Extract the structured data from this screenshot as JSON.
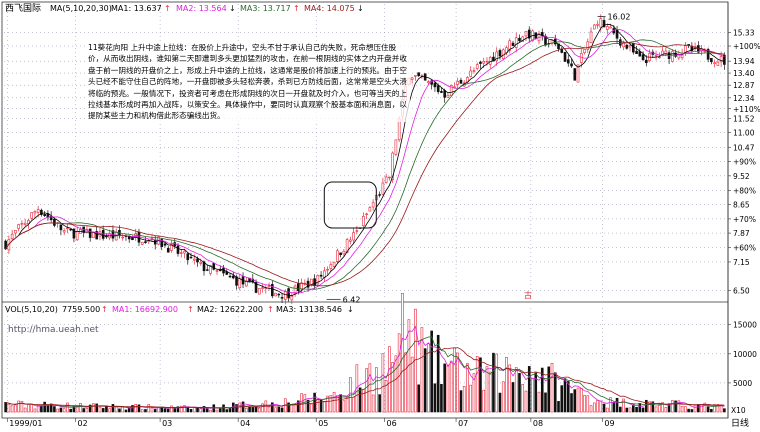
{
  "header": {
    "stock_name": "西飞国际",
    "ma_prefix": "MA(5,10,20,30)",
    "ma1": "MA1: 13.637",
    "ma2": "MA2: 13.564",
    "ma3": "MA3: 13.717",
    "ma4": "MA4: 14.075",
    "arrow_up": "↑",
    "arrow_down": "↓"
  },
  "annotation": {
    "text": "11葵花向阳  上升中途上拉线：在股价上升途中，空头不甘于承认自己的失败，死命想压住股价，从而收出阴线，谁知第二天即遭到多头更加猛烈的攻击，在前一根阴线的实体之内开盘并收盘于前一阴线的开盘价之上，形成上升中途的上拉线，这通常是股价将加速上行的预兆。由于空头已经不能守住自己的阵地，一开盘即被多头轻松奔袭，杀到已方防线后面，这常常是空头大溃将临的预兆。一般情况下，投资者可考虑在形成阴线的次日一开盘就及时介入，也可等当天的上拉线基本形成时再加入战阵，以策安全。具体操作中，要同时认真观察个股基本面和消息面，以提防某些主力和机构借此形态骗线出货。"
  },
  "volume_header": {
    "prefix": "VOL(5,10,20)",
    "vol": "7759.500",
    "ma1": "MA1: 16692.900",
    "ma2": "MA2: 12622.200",
    "ma3": "MA3: 13138.546",
    "arrow_up": "↑",
    "arrow_down": "↓"
  },
  "watermark": "http://hma.ueah.net",
  "period_label": "日线",
  "marker_char": "古",
  "colors": {
    "up": "#e8283c",
    "down": "#111111",
    "ma1": "#000000",
    "ma2": "#e020e0",
    "ma3": "#2a6a2a",
    "ma4": "#9a1a1a",
    "grid": "#8a8aaa"
  },
  "chart_data": {
    "type": "candlestick",
    "price_axis": {
      "ticks": [
        "15.33",
        "+100%",
        "13.94",
        "13.40",
        "12.87",
        "12.34",
        "+110%",
        "11.52",
        "11.00",
        "10.47",
        "+90%",
        "9.52",
        "+80%",
        "8.65",
        "+70%",
        "7.87",
        "+60%",
        "7.15",
        "6.50"
      ],
      "tick_values": [
        15.33,
        14.66,
        13.94,
        13.4,
        12.87,
        12.34,
        11.9,
        11.52,
        11.0,
        10.47,
        9.98,
        9.52,
        9.07,
        8.65,
        8.25,
        7.87,
        7.5,
        7.15,
        6.5
      ],
      "range": [
        6.3,
        16.2
      ],
      "log_scale": true
    },
    "volume_axis": {
      "ticks": [
        "15000",
        "10000",
        "5000",
        "X10"
      ],
      "tick_values": [
        15000,
        10000,
        5000
      ],
      "range": [
        0,
        16500
      ]
    },
    "x_axis": {
      "labels": [
        "1999/01",
        "02",
        "03",
        "04",
        "05",
        "06",
        "07",
        "08",
        "09"
      ],
      "label_day": [
        1,
        22,
        48,
        72,
        96,
        117,
        139,
        162,
        184
      ]
    },
    "annotations": [
      {
        "label": "6.42",
        "day": 103
      },
      {
        "label": "16.02",
        "day": 182
      }
    ],
    "highlight_box": {
      "day_start": 98,
      "day_end": 114
    },
    "summary_levels": {
      "low": 6.42,
      "high": 16.02,
      "final_close": 13.94
    },
    "ohlc_keypoints": [
      {
        "day": 0,
        "price": 7.6
      },
      {
        "day": 10,
        "price": 8.55
      },
      {
        "day": 18,
        "price": 7.9
      },
      {
        "day": 30,
        "price": 7.8
      },
      {
        "day": 45,
        "price": 7.75
      },
      {
        "day": 60,
        "price": 7.05
      },
      {
        "day": 75,
        "price": 6.6
      },
      {
        "day": 86,
        "price": 6.42
      },
      {
        "day": 96,
        "price": 6.75
      },
      {
        "day": 108,
        "price": 7.9
      },
      {
        "day": 118,
        "price": 9.5
      },
      {
        "day": 124,
        "price": 13.4
      },
      {
        "day": 135,
        "price": 12.5
      },
      {
        "day": 145,
        "price": 13.6
      },
      {
        "day": 160,
        "price": 15.33
      },
      {
        "day": 170,
        "price": 14.6
      },
      {
        "day": 175,
        "price": 13.3
      },
      {
        "day": 182,
        "price": 16.02
      },
      {
        "day": 195,
        "price": 14.0
      },
      {
        "day": 210,
        "price": 14.5
      },
      {
        "day": 221,
        "price": 13.94
      }
    ],
    "volume_keypoints": [
      {
        "day": 0,
        "vol": 1400
      },
      {
        "day": 20,
        "vol": 1100
      },
      {
        "day": 60,
        "vol": 700
      },
      {
        "day": 86,
        "vol": 1800
      },
      {
        "day": 100,
        "vol": 2800
      },
      {
        "day": 118,
        "vol": 9000
      },
      {
        "day": 123,
        "vol": 15000
      },
      {
        "day": 130,
        "vol": 9500
      },
      {
        "day": 145,
        "vol": 6500
      },
      {
        "day": 160,
        "vol": 8000
      },
      {
        "day": 175,
        "vol": 3800
      },
      {
        "day": 185,
        "vol": 1800
      },
      {
        "day": 200,
        "vol": 1500
      },
      {
        "day": 221,
        "vol": 900
      }
    ],
    "n_days": 222
  }
}
